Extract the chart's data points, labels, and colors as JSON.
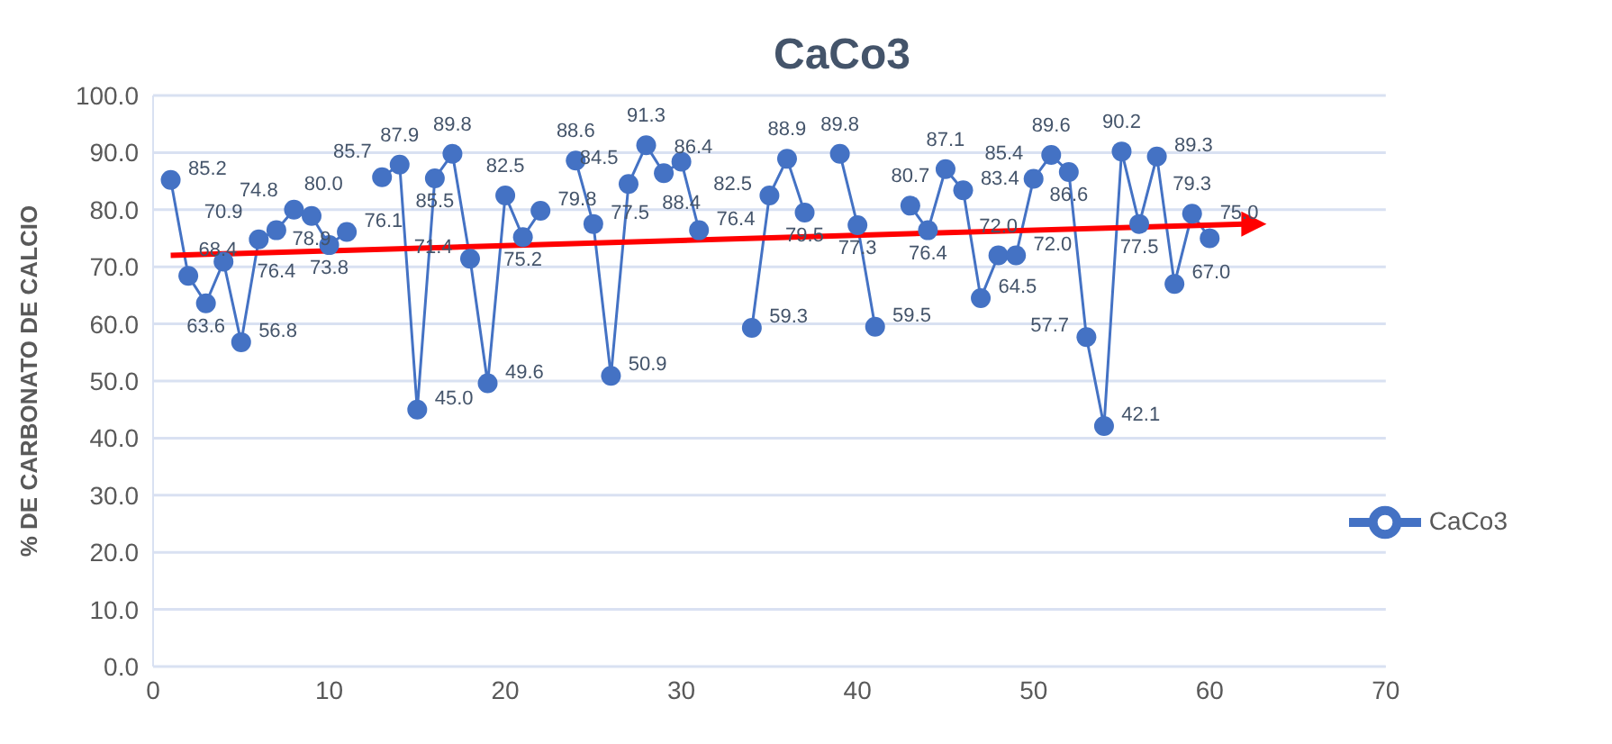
{
  "chart_data": {
    "type": "line",
    "title": "CaCo3",
    "ylabel": "% DE CARBONATO DE CALCIO",
    "x": [
      1,
      2,
      3,
      4,
      5,
      6,
      7,
      8,
      9,
      10,
      11,
      12,
      13,
      14,
      15,
      16,
      17,
      18,
      19,
      20,
      21,
      22,
      23,
      24,
      25,
      26,
      27,
      28,
      29,
      30,
      31,
      32,
      33,
      34,
      35,
      36,
      37,
      38,
      39,
      40,
      41,
      42,
      43,
      44,
      45,
      46,
      47,
      48,
      49,
      50,
      51,
      52,
      53,
      54,
      55,
      56,
      57,
      58,
      59,
      60
    ],
    "series": [
      {
        "name": "CaCo3",
        "color": "#4472c4",
        "values": [
          85.2,
          68.4,
          63.6,
          70.9,
          56.8,
          74.8,
          76.4,
          80.0,
          78.9,
          73.8,
          76.1,
          null,
          85.7,
          87.9,
          45.0,
          85.5,
          89.8,
          71.4,
          49.6,
          82.5,
          75.2,
          79.8,
          null,
          88.6,
          77.5,
          50.9,
          84.5,
          91.3,
          86.4,
          88.4,
          76.4,
          null,
          null,
          59.3,
          82.5,
          88.9,
          79.5,
          null,
          89.8,
          77.3,
          59.5,
          null,
          80.7,
          76.4,
          87.1,
          83.4,
          64.5,
          72.0,
          72.0,
          85.4,
          89.6,
          86.6,
          57.7,
          42.1,
          90.2,
          77.5,
          89.3,
          67.0,
          79.3,
          75.0
        ],
        "value_labels": [
          "85.2",
          "68.4",
          "63.6",
          "70.9",
          "56.8",
          "74.8",
          "76.4",
          "80.0",
          "78.9",
          "73.8",
          "76.1",
          null,
          "85.7",
          "87.9",
          "45.0",
          "85.5",
          "89.8",
          "71.4",
          "49.6",
          "82.5",
          "75.2",
          "79.8",
          null,
          "88.6",
          "77.5",
          "50.9",
          "84.5",
          "91.3",
          "86.4",
          "88.4",
          "76.4",
          null,
          null,
          "59.3",
          "82.5",
          "88.9",
          "79.5",
          null,
          "89.8",
          "77.3",
          "59.5",
          null,
          "80.7",
          "76.4",
          "87.1",
          "83.4",
          "64.5",
          "72.0",
          "72.0",
          "85.4",
          "89.6",
          "86.6",
          "57.7",
          "42.1",
          "90.2",
          "77.5",
          "89.3",
          "67.0",
          "79.3",
          "75.0"
        ],
        "marker": "circle"
      },
      {
        "type": "line",
        "color": "#ff0000",
        "x": [
          1,
          62
        ],
        "values": [
          72,
          77.5
        ],
        "marker": "triangle"
      }
    ],
    "xlim": [
      0,
      70
    ],
    "xticks": [
      0,
      10,
      20,
      30,
      40,
      50,
      60,
      70
    ],
    "ylim": [
      0,
      100
    ],
    "yticks": [
      {
        "value": 0,
        "label": "0.0"
      },
      {
        "value": 10,
        "label": "10.0"
      },
      {
        "value": 20,
        "label": "20.0"
      },
      {
        "value": 30,
        "label": "30.0"
      },
      {
        "value": 40,
        "label": "40.0"
      },
      {
        "value": 50,
        "label": "50.0"
      },
      {
        "value": 60,
        "label": "60.0"
      },
      {
        "value": 70,
        "label": "70.0"
      },
      {
        "value": 80,
        "label": "80.0"
      },
      {
        "value": 90,
        "label": "90.0"
      },
      {
        "value": 100,
        "label": "100.0"
      }
    ],
    "grid": "y",
    "legend": "bottom right"
  }
}
